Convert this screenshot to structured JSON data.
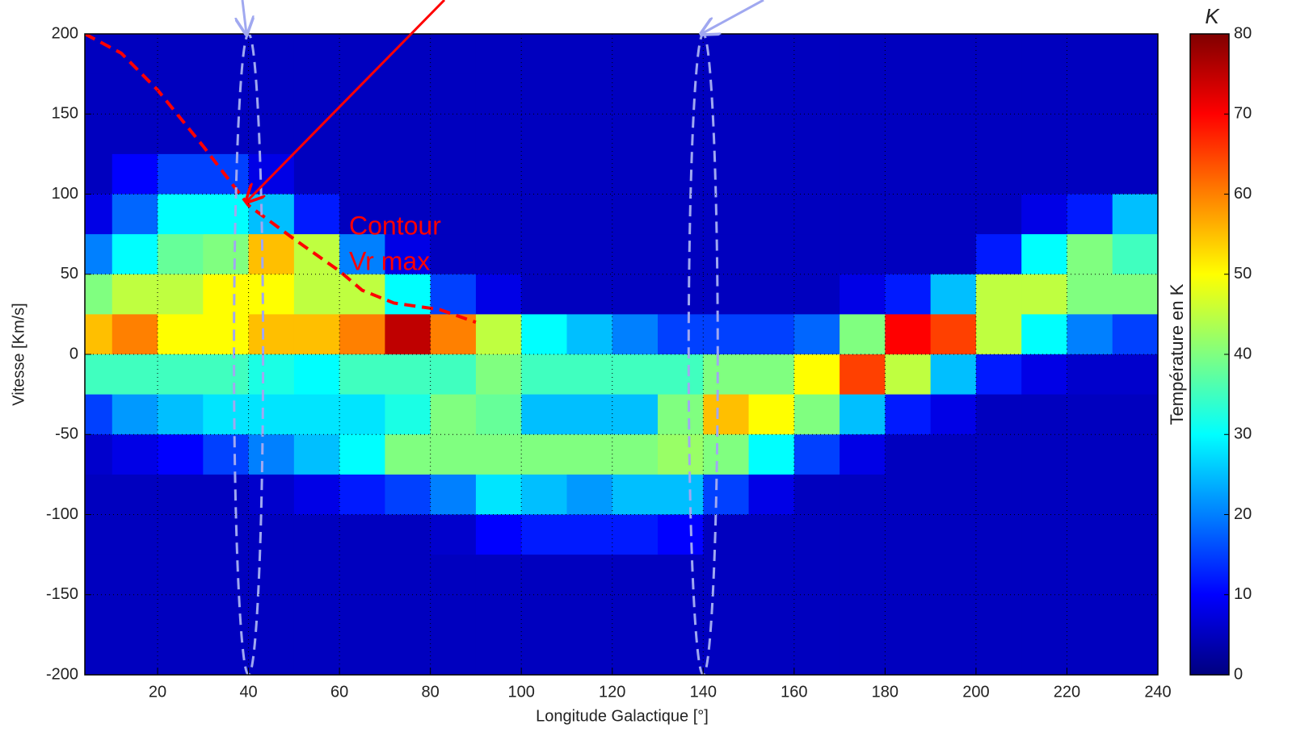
{
  "chart_data": {
    "type": "heatmap",
    "x_label": "Longitude Galactique [°]",
    "y_label": "Vitesse [Km/s]",
    "colorbar_label": "Température en K",
    "colorbar_title": "K",
    "annotation": [
      "Contour",
      "Vr max"
    ],
    "xlim": [
      4,
      240
    ],
    "ylim": [
      -200,
      200
    ],
    "xticks": [
      20,
      40,
      60,
      80,
      100,
      120,
      140,
      160,
      180,
      200,
      220,
      240
    ],
    "yticks": [
      -200,
      -150,
      -100,
      -50,
      0,
      50,
      100,
      150,
      200
    ],
    "clim": [
      0,
      80
    ],
    "cticks": [
      0,
      10,
      20,
      30,
      40,
      50,
      60,
      70,
      80
    ],
    "colormap": "jet",
    "grid": true,
    "x": [
      5,
      15,
      25,
      35,
      45,
      55,
      65,
      75,
      85,
      95,
      105,
      115,
      125,
      135,
      145,
      155,
      165,
      175,
      185,
      195,
      205,
      215,
      225,
      235
    ],
    "y": [
      187.5,
      162.5,
      137.5,
      112.5,
      87.5,
      62.5,
      37.5,
      12.5,
      -12.5,
      -37.5,
      -62.5,
      -87.5,
      -112.5,
      -137.5,
      -162.5,
      -187.5
    ],
    "values": [
      [
        5,
        5,
        5,
        5,
        8,
        20,
        40,
        55,
        35,
        15,
        6,
        5,
        5,
        5,
        5,
        5
      ],
      [
        5,
        5,
        5,
        10,
        18,
        30,
        45,
        60,
        35,
        22,
        8,
        5,
        5,
        5,
        5,
        5
      ],
      [
        5,
        5,
        5,
        15,
        30,
        38,
        45,
        50,
        35,
        25,
        10,
        5,
        5,
        5,
        5,
        5
      ],
      [
        5,
        5,
        5,
        15,
        30,
        40,
        50,
        50,
        35,
        28,
        15,
        5,
        5,
        5,
        5,
        5
      ],
      [
        5,
        5,
        5,
        8,
        25,
        55,
        50,
        55,
        32,
        28,
        20,
        6,
        5,
        5,
        5,
        5
      ],
      [
        5,
        5,
        5,
        5,
        12,
        45,
        45,
        55,
        30,
        28,
        25,
        8,
        5,
        5,
        5,
        5
      ],
      [
        5,
        5,
        5,
        5,
        5,
        20,
        45,
        60,
        35,
        28,
        30,
        12,
        5,
        5,
        5,
        5
      ],
      [
        5,
        5,
        5,
        5,
        5,
        8,
        30,
        75,
        35,
        32,
        40,
        15,
        5,
        5,
        5,
        5
      ],
      [
        5,
        5,
        5,
        5,
        5,
        5,
        15,
        60,
        35,
        40,
        40,
        20,
        6,
        5,
        5,
        5
      ],
      [
        5,
        5,
        5,
        5,
        5,
        5,
        8,
        45,
        40,
        38,
        40,
        28,
        10,
        5,
        5,
        5
      ],
      [
        5,
        5,
        5,
        5,
        5,
        5,
        5,
        30,
        35,
        25,
        40,
        25,
        12,
        5,
        5,
        5
      ],
      [
        5,
        5,
        5,
        5,
        5,
        5,
        5,
        25,
        35,
        25,
        40,
        22,
        12,
        5,
        5,
        5
      ],
      [
        5,
        5,
        5,
        5,
        5,
        5,
        5,
        20,
        35,
        25,
        40,
        25,
        12,
        5,
        5,
        5
      ],
      [
        5,
        5,
        5,
        5,
        5,
        5,
        5,
        15,
        35,
        40,
        42,
        25,
        10,
        5,
        5,
        5
      ],
      [
        5,
        5,
        5,
        5,
        5,
        5,
        5,
        15,
        40,
        55,
        40,
        15,
        5,
        5,
        5,
        5
      ],
      [
        5,
        5,
        5,
        5,
        5,
        5,
        5,
        15,
        40,
        50,
        30,
        8,
        5,
        5,
        5,
        5
      ],
      [
        5,
        5,
        5,
        5,
        5,
        5,
        5,
        18,
        50,
        40,
        15,
        5,
        5,
        5,
        5,
        5
      ],
      [
        5,
        5,
        5,
        5,
        5,
        5,
        8,
        40,
        65,
        25,
        8,
        5,
        5,
        5,
        5,
        5
      ],
      [
        5,
        5,
        5,
        5,
        5,
        5,
        12,
        70,
        45,
        12,
        5,
        5,
        5,
        5,
        5,
        5
      ],
      [
        5,
        5,
        5,
        5,
        5,
        5,
        25,
        65,
        25,
        8,
        5,
        5,
        5,
        5,
        5,
        5
      ],
      [
        5,
        5,
        5,
        5,
        5,
        12,
        45,
        45,
        12,
        5,
        5,
        5,
        5,
        5,
        5,
        5
      ],
      [
        5,
        5,
        5,
        5,
        8,
        30,
        45,
        30,
        8,
        5,
        5,
        5,
        5,
        5,
        5,
        5
      ],
      [
        5,
        5,
        5,
        5,
        12,
        40,
        40,
        20,
        6,
        5,
        5,
        5,
        5,
        5,
        5,
        5
      ],
      [
        5,
        5,
        5,
        5,
        25,
        35,
        40,
        15,
        6,
        5,
        5,
        5,
        5,
        5,
        5,
        5
      ]
    ],
    "contour": {
      "color": "#ff0000",
      "x": [
        4,
        12,
        20,
        30,
        40,
        50,
        60,
        65,
        72,
        82,
        90
      ],
      "y": [
        200,
        188,
        165,
        130,
        93,
        72,
        52,
        40,
        32,
        28,
        20
      ]
    },
    "highlights": {
      "color": "#a0a8f0",
      "x": [
        40,
        140
      ]
    }
  }
}
